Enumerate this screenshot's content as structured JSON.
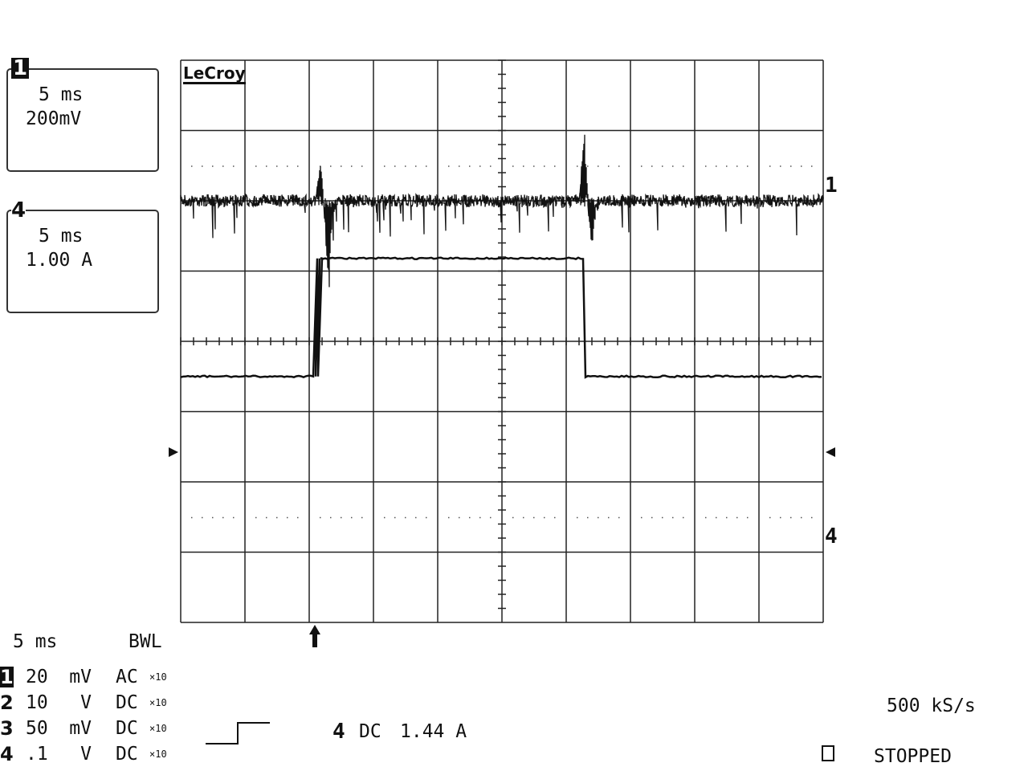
{
  "brand": "LeCroy",
  "zoom_traces": [
    {
      "channel": "1",
      "timebase": "5 ms",
      "scale": "200mV"
    },
    {
      "channel": "4",
      "timebase": "5 ms",
      "scale": "1.00 A"
    }
  ],
  "trace_labels": {
    "upper": "1",
    "lower": "4"
  },
  "footer": {
    "timebase": "5 ms",
    "bwl": "BWL",
    "channels": [
      {
        "num": "1",
        "scale": "20",
        "unit": "mV",
        "coupling": "AC",
        "probe": "×10"
      },
      {
        "num": "2",
        "scale": "10",
        "unit": "V",
        "coupling": "DC",
        "probe": "×10"
      },
      {
        "num": "3",
        "scale": "50",
        "unit": "mV",
        "coupling": "DC",
        "probe": "×10"
      },
      {
        "num": "4",
        "scale": ".1",
        "unit": "V",
        "coupling": "DC",
        "probe": "×10"
      }
    ],
    "trigger": {
      "source": "4",
      "coupling": "DC",
      "level": "1.44 A",
      "slope": "rising"
    },
    "sample_rate": "500 kS/s",
    "status": "STOPPED"
  },
  "chart_data": {
    "type": "line",
    "title": "",
    "grid": true,
    "x_divisions": 10,
    "y_divisions": 8,
    "time_per_div_ms": 5,
    "trigger_time_div": 2.1,
    "series": [
      {
        "name": "1",
        "volts_per_div": "200mV",
        "baseline_div": 2.0,
        "transients": [
          {
            "t_div": 2.2,
            "peak_div": 0.45,
            "trough_div": -1.0
          },
          {
            "t_div": 6.3,
            "peak_div": 0.9,
            "trough_div": -0.6
          }
        ]
      },
      {
        "name": "4",
        "amps_per_div": "1.00 A",
        "low_div": -0.5,
        "high_div": 1.18,
        "rise_t_div": 2.1,
        "fall_t_div": 6.3
      }
    ]
  },
  "colors": {
    "trace": "#111111",
    "grid": "#222222",
    "background": "#ffffff"
  }
}
